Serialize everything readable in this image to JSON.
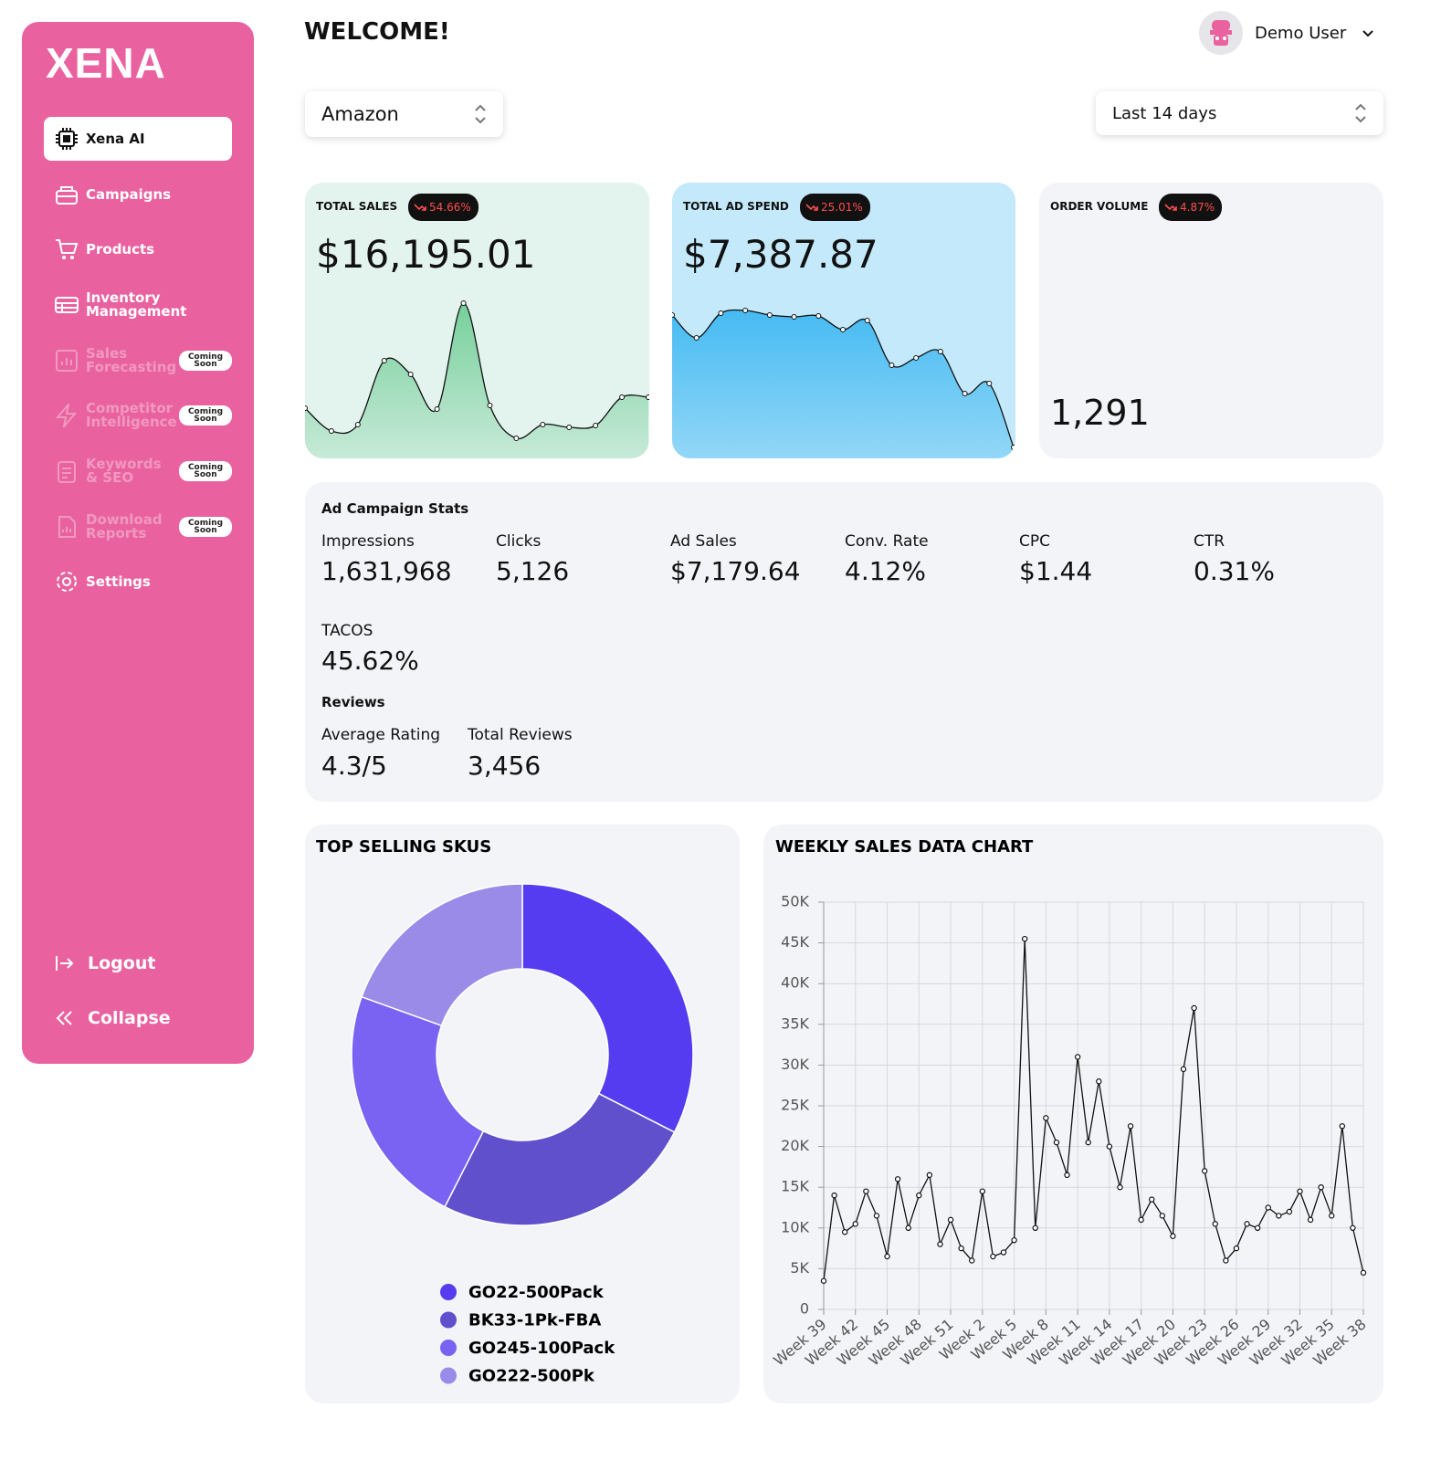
{
  "sidebar": {
    "logo": "XENA",
    "menu": [
      {
        "label": "Xena AI"
      },
      {
        "label": "Campaigns"
      },
      {
        "label": "Products"
      },
      {
        "label": "Inventory Management"
      },
      {
        "label": "Sales Forecasting",
        "badge": "Coming Soon"
      },
      {
        "label": "Competitor Intelligence",
        "badge": "Coming Soon"
      },
      {
        "label": "Keywords & SEO",
        "badge": "Coming Soon"
      },
      {
        "label": "Download Reports",
        "badge": "Coming Soon"
      },
      {
        "label": "Settings"
      }
    ],
    "footer": [
      "Logout",
      "Collapse"
    ]
  },
  "header": {
    "title": "WELCOME!",
    "user": "Demo User"
  },
  "filters": {
    "marketplace": "Amazon",
    "range": "Last 14 days"
  },
  "kpis": [
    {
      "label": "TOTAL SALES",
      "change": "54.66%",
      "value": "$16,195.01"
    },
    {
      "label": "TOTAL AD SPEND",
      "change": "25.01%",
      "value": "$7,387.87"
    },
    {
      "label": "ORDER VOLUME",
      "change": "4.87%",
      "value": "1,291"
    }
  ],
  "ad_stats": {
    "title": "Ad Campaign Stats",
    "items": [
      {
        "label": "Impressions",
        "value": "1,631,968"
      },
      {
        "label": "Clicks",
        "value": "5,126"
      },
      {
        "label": "Ad Sales",
        "value": "$7,179.64"
      },
      {
        "label": "Conv. Rate",
        "value": "4.12%"
      },
      {
        "label": "CPC",
        "value": "$1.44"
      },
      {
        "label": "CTR",
        "value": "0.31%"
      },
      {
        "label": "TACOS",
        "value": "45.62%"
      }
    ]
  },
  "reviews": {
    "title": "Reviews",
    "items": [
      {
        "label": "Average Rating",
        "value": "4.3/5"
      },
      {
        "label": "Total Reviews",
        "value": "3,456"
      }
    ]
  },
  "chart_data": [
    {
      "type": "pie",
      "title": "TOP SELLING SKUS",
      "categories": [
        "GO22-500Pack",
        "BK33-1Pk-FBA",
        "GO245-100Pack",
        "GO222-500Pk"
      ],
      "values": [
        32.5,
        25,
        23,
        19.5
      ],
      "colors": [
        "#553cf0",
        "#6150cc",
        "#7a63f2",
        "#9a8be8"
      ]
    },
    {
      "type": "line",
      "title": "WEEKLY SALES DATA CHART",
      "categories": [
        "Week 39",
        null,
        null,
        "Week 42",
        null,
        null,
        "Week 45",
        null,
        null,
        "Week 48",
        null,
        null,
        "Week 51",
        null,
        null,
        "Week 2",
        null,
        null,
        "Week 5",
        null,
        null,
        "Week 8",
        null,
        null,
        "Week 11",
        null,
        null,
        "Week 14",
        null,
        null,
        "Week 17",
        null,
        null,
        "Week 20",
        null,
        null,
        "Week 23",
        null,
        null,
        "Week 26",
        null,
        null,
        "Week 29",
        null,
        null,
        "Week 32",
        null,
        null,
        "Week 35",
        null,
        null,
        "Week 38"
      ],
      "values": [
        3500,
        14000,
        9500,
        10500,
        14500,
        11500,
        6500,
        16000,
        10000,
        14000,
        16500,
        8000,
        11000,
        7500,
        6000,
        14500,
        6500,
        7000,
        8500,
        45500,
        10000,
        23500,
        20500,
        16500,
        31000,
        20500,
        28000,
        20000,
        15000,
        22500,
        11000,
        13500,
        11500,
        9000,
        29500,
        37000,
        17000,
        10500,
        6000,
        7500,
        10500,
        10000,
        12500,
        11500,
        12000,
        14500,
        11000,
        15000,
        11500,
        22500,
        10000,
        4500
      ],
      "color": "#111111",
      "ylim": [
        0,
        50000
      ],
      "yticks": [
        0,
        {
          "value": 5000,
          "label": "5K"
        },
        {
          "value": 10000,
          "label": "10K"
        },
        {
          "value": 15000,
          "label": "15K"
        },
        {
          "value": 20000,
          "label": "20K"
        },
        {
          "value": 25000,
          "label": "25K"
        },
        {
          "value": 30000,
          "label": "30K"
        },
        {
          "value": 35000,
          "label": "35K"
        },
        {
          "value": 40000,
          "label": "40K"
        },
        {
          "value": 45000,
          "label": "45K"
        },
        {
          "value": 50000,
          "label": "50K"
        }
      ],
      "grid": true
    },
    {
      "type": "area",
      "values": [
        55,
        30,
        37,
        107,
        92,
        54,
        170,
        58,
        22,
        37,
        34,
        36,
        67,
        67
      ],
      "ylim": [
        0,
        200
      ],
      "color": "#63c98c"
    },
    {
      "type": "area",
      "values": [
        157,
        132,
        159,
        162,
        157,
        155,
        156,
        141,
        151,
        102,
        110,
        117,
        71,
        82,
        12
      ],
      "ylim": [
        0,
        200
      ],
      "color": "#3fb8f2"
    }
  ]
}
